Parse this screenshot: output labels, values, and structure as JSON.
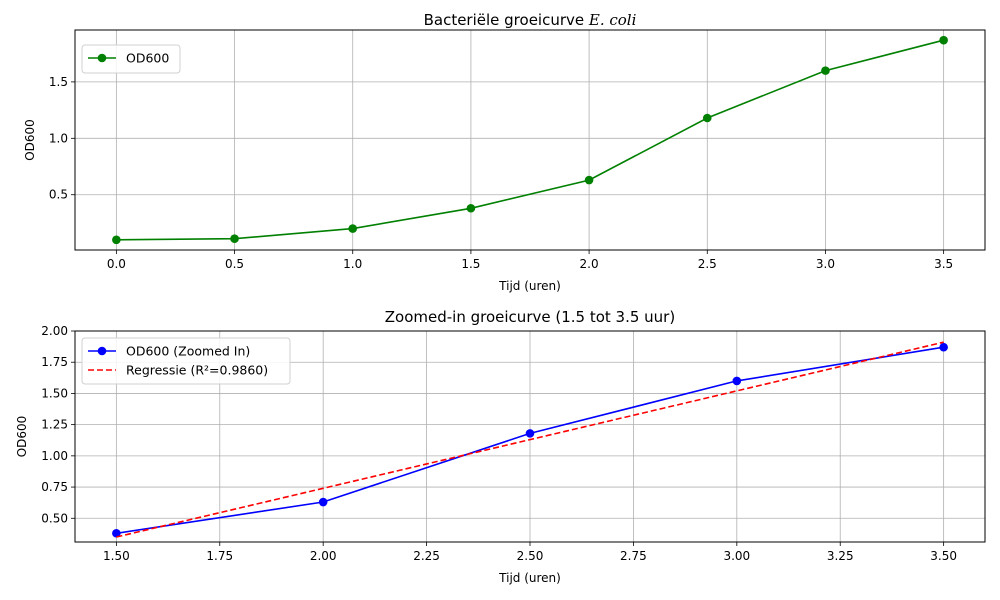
{
  "chart_data": [
    {
      "type": "line",
      "title": "Bacteriële groeicurve",
      "title_italic": "E.  coli",
      "xlabel": "Tijd (uren)",
      "ylabel": "OD600",
      "xlim": [
        -0.175,
        3.675
      ],
      "ylim": [
        0.01,
        1.96
      ],
      "xticks": [
        0.0,
        0.5,
        1.0,
        1.5,
        2.0,
        2.5,
        3.0,
        3.5
      ],
      "xtick_labels": [
        "0.0",
        "0.5",
        "1.0",
        "1.5",
        "2.0",
        "2.5",
        "3.0",
        "3.5"
      ],
      "yticks": [
        0.5,
        1.0,
        1.5
      ],
      "ytick_labels": [
        "0.5",
        "1.0",
        "1.5"
      ],
      "grid": true,
      "legend_position": "top-left",
      "series": [
        {
          "name": "OD600",
          "color": "#008000",
          "style": "solid",
          "marker": "circle",
          "x": [
            0.0,
            0.5,
            1.0,
            1.5,
            2.0,
            2.5,
            3.0,
            3.5
          ],
          "y": [
            0.1,
            0.11,
            0.2,
            0.38,
            0.63,
            1.18,
            1.6,
            1.87
          ]
        }
      ]
    },
    {
      "type": "line",
      "title": "Zoomed-in groeicurve (1.5 tot 3.5 uur)",
      "xlabel": "Tijd (uren)",
      "ylabel": "OD600",
      "xlim": [
        1.4,
        3.6
      ],
      "ylim": [
        0.31,
        2.0
      ],
      "xticks": [
        1.5,
        1.75,
        2.0,
        2.25,
        2.5,
        2.75,
        3.0,
        3.25,
        3.5
      ],
      "xtick_labels": [
        "1.50",
        "1.75",
        "2.00",
        "2.25",
        "2.50",
        "2.75",
        "3.00",
        "3.25",
        "3.50"
      ],
      "yticks": [
        0.5,
        0.75,
        1.0,
        1.25,
        1.5,
        1.75,
        2.0
      ],
      "ytick_labels": [
        "0.50",
        "0.75",
        "1.00",
        "1.25",
        "1.50",
        "1.75",
        "2.00"
      ],
      "grid": true,
      "legend_position": "top-left",
      "series": [
        {
          "name": "OD600 (Zoomed In)",
          "color": "#0000ff",
          "style": "solid",
          "marker": "circle",
          "x": [
            1.5,
            2.0,
            2.5,
            3.0,
            3.5
          ],
          "y": [
            0.38,
            0.63,
            1.18,
            1.6,
            1.87
          ]
        },
        {
          "name": "Regressie (R²=0.9860)",
          "color": "#ff0000",
          "style": "dashed",
          "marker": "none",
          "x": [
            1.5,
            2.0,
            2.5,
            3.0,
            3.5
          ],
          "y": [
            0.35,
            0.74,
            1.13,
            1.52,
            1.91
          ]
        }
      ]
    }
  ]
}
